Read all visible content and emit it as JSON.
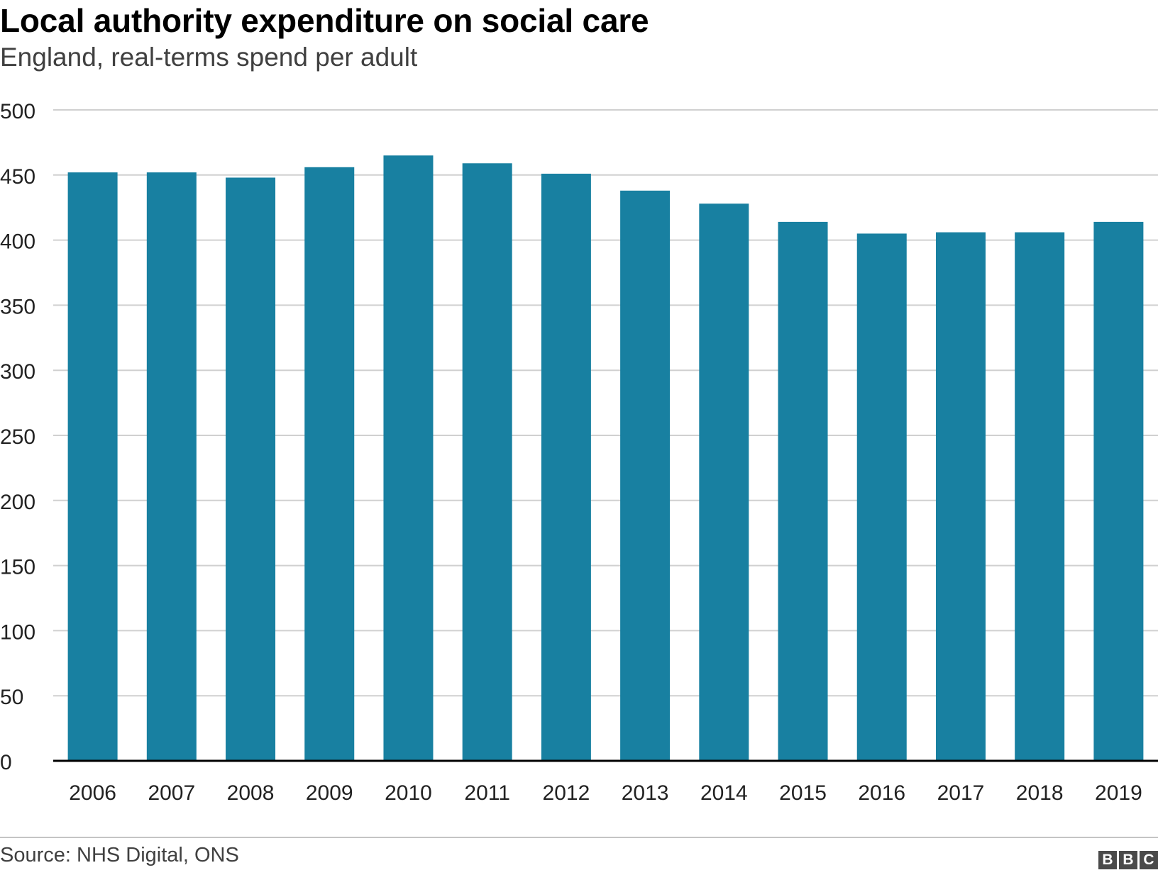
{
  "header": {
    "title": "Local authority expenditure on social care",
    "subtitle": "England, real-terms spend per adult"
  },
  "footer": {
    "source": "Source: NHS Digital, ONS",
    "logo_letters": [
      "B",
      "B",
      "C"
    ]
  },
  "colors": {
    "bar": "#1880a1",
    "grid": "#d0d0d0",
    "axis": "#000000"
  },
  "chart_data": {
    "type": "bar",
    "title": "Local authority expenditure on social care",
    "subtitle": "England, real-terms spend per adult",
    "xlabel": "",
    "ylabel": "",
    "categories": [
      "2006",
      "2007",
      "2008",
      "2009",
      "2010",
      "2011",
      "2012",
      "2013",
      "2014",
      "2015",
      "2016",
      "2017",
      "2018",
      "2019"
    ],
    "values": [
      452,
      452,
      448,
      456,
      465,
      459,
      451,
      438,
      428,
      414,
      405,
      406,
      406,
      414
    ],
    "ylim": [
      0,
      500
    ],
    "yticks": [
      "0",
      "50",
      "100",
      "150",
      "200",
      "250",
      "300",
      "350",
      "400",
      "450",
      "500"
    ],
    "grid": true,
    "legend": "none"
  }
}
